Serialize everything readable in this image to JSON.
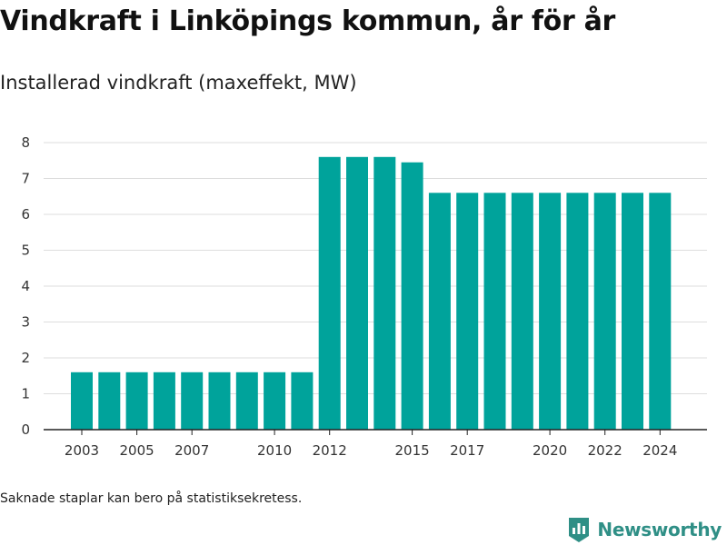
{
  "title": "Vindkraft i Linköpings kommun, år för år",
  "subtitle": "Installerad vindkraft (maxeffekt, MW)",
  "footnote": "Saknade staplar kan bero på statistiksekretess.",
  "brand": "Newsworthy",
  "colors": {
    "bar": "#00a39b",
    "brand": "#2f8f86",
    "grid": "#dddddd",
    "axis": "#222222"
  },
  "chart_data": {
    "type": "bar",
    "categories": [
      "2003",
      "2004",
      "2005",
      "2006",
      "2007",
      "2008",
      "2009",
      "2010",
      "2011",
      "2012",
      "2013",
      "2014",
      "2015",
      "2016",
      "2017",
      "2018",
      "2019",
      "2020",
      "2021",
      "2022",
      "2023",
      "2024"
    ],
    "values": [
      1.6,
      1.6,
      1.6,
      1.6,
      1.6,
      1.6,
      1.6,
      1.6,
      1.6,
      7.6,
      7.6,
      7.6,
      7.45,
      6.6,
      6.6,
      6.6,
      6.6,
      6.6,
      6.6,
      6.6,
      6.6,
      6.6
    ],
    "x_tick_labels": [
      "2003",
      "2005",
      "2007",
      "2010",
      "2012",
      "2015",
      "2017",
      "2020",
      "2022",
      "2024"
    ],
    "y_ticks": [
      "0",
      "1",
      "2",
      "3",
      "4",
      "5",
      "6",
      "7",
      "8"
    ],
    "ylim": [
      0,
      8
    ],
    "grid": true,
    "legend": "none"
  }
}
